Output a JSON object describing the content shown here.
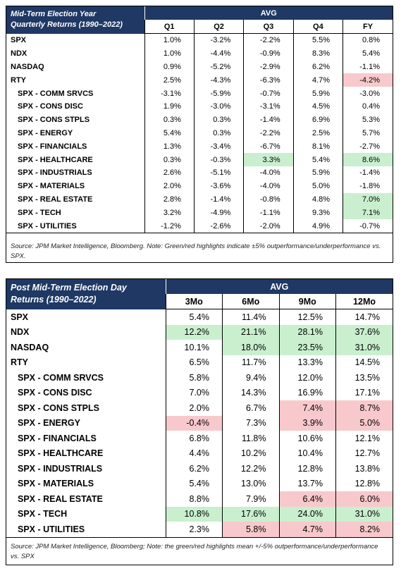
{
  "table1": {
    "title": [
      "Mid-Term Election Year",
      "Quarterly Returns (1990–2022)"
    ],
    "group": "AVG",
    "columns": [
      "Q1",
      "Q2",
      "Q3",
      "Q4",
      "FY"
    ],
    "rows": [
      [
        "SPX",
        "1.0%",
        "-3.2%",
        "-2.2%",
        "5.5%",
        "0.8%"
      ],
      [
        "NDX",
        "1.0%",
        "-4.4%",
        "-0.9%",
        "8.3%",
        "5.4%"
      ],
      [
        "NASDAQ",
        "0.9%",
        "-5.2%",
        "-2.9%",
        "6.2%",
        "-1.1%"
      ],
      [
        "RTY",
        "2.5%",
        "-4.3%",
        "-6.3%",
        "4.7%",
        "-4.2%"
      ],
      [
        "SPX - COMM SRVCS",
        "-3.1%",
        "-5.9%",
        "-0.7%",
        "5.9%",
        "-3.0%"
      ],
      [
        "SPX - CONS DISC",
        "1.9%",
        "-3.0%",
        "-3.1%",
        "4.5%",
        "0.4%"
      ],
      [
        "SPX - CONS STPLS",
        "0.3%",
        "0.3%",
        "-1.4%",
        "6.9%",
        "5.3%"
      ],
      [
        "SPX - ENERGY",
        "5.4%",
        "0.3%",
        "-2.2%",
        "2.5%",
        "5.7%"
      ],
      [
        "SPX - FINANCIALS",
        "1.3%",
        "-3.4%",
        "-6.7%",
        "8.1%",
        "-2.7%"
      ],
      [
        "SPX - HEALTHCARE",
        "0.3%",
        "-0.3%",
        "3.3%",
        "5.4%",
        "8.6%"
      ],
      [
        "SPX - INDUSTRIALS",
        "2.6%",
        "-5.1%",
        "-4.0%",
        "5.9%",
        "-1.4%"
      ],
      [
        "SPX - MATERIALS",
        "2.0%",
        "-3.6%",
        "-4.0%",
        "5.0%",
        "-1.8%"
      ],
      [
        "SPX - REAL ESTATE",
        "2.8%",
        "-1.4%",
        "-0.8%",
        "4.8%",
        "7.0%"
      ],
      [
        "SPX - TECH",
        "3.2%",
        "-4.9%",
        "-1.1%",
        "9.3%",
        "7.1%"
      ],
      [
        "SPX - UTILITIES",
        "-1.2%",
        "-2.6%",
        "-2.0%",
        "4.9%",
        "-0.7%"
      ]
    ],
    "highlights": [
      {
        "row": 3,
        "col": 5,
        "color": "#f8c9cc"
      },
      {
        "row": 9,
        "col": 3,
        "color": "#c9efcf"
      },
      {
        "row": 9,
        "col": 5,
        "color": "#c9efcf"
      },
      {
        "row": 12,
        "col": 5,
        "color": "#c9efcf"
      },
      {
        "row": 13,
        "col": 5,
        "color": "#c9efcf"
      }
    ],
    "source": "Source: JPM Market Intelligence, Bloomberg. Note: Green/red highlights indicate ±5% outperformance/underperformance vs. SPX."
  },
  "table2": {
    "title": [
      "Post Mid-Term Election Day",
      "Returns (1990–2022)"
    ],
    "group": "AVG",
    "columns": [
      "3Mo",
      "6Mo",
      "9Mo",
      "12Mo"
    ],
    "rows": [
      [
        "SPX",
        "5.4%",
        "11.4%",
        "12.5%",
        "14.7%"
      ],
      [
        "NDX",
        "12.2%",
        "21.1%",
        "28.1%",
        "37.6%"
      ],
      [
        "NASDAQ",
        "10.1%",
        "18.0%",
        "23.5%",
        "31.0%"
      ],
      [
        "RTY",
        "6.5%",
        "11.7%",
        "13.3%",
        "14.5%"
      ],
      [
        "SPX - COMM SRVCS",
        "5.8%",
        "9.4%",
        "12.0%",
        "13.5%"
      ],
      [
        "SPX - CONS DISC",
        "7.0%",
        "14.3%",
        "16.9%",
        "17.1%"
      ],
      [
        "SPX - CONS STPLS",
        "2.0%",
        "6.7%",
        "7.4%",
        "8.7%"
      ],
      [
        "SPX - ENERGY",
        "-0.4%",
        "7.3%",
        "3.9%",
        "5.0%"
      ],
      [
        "SPX - FINANCIALS",
        "6.8%",
        "11.8%",
        "10.6%",
        "12.1%"
      ],
      [
        "SPX - HEALTHCARE",
        "4.4%",
        "10.2%",
        "10.4%",
        "12.7%"
      ],
      [
        "SPX - INDUSTRIALS",
        "6.2%",
        "12.2%",
        "12.8%",
        "13.8%"
      ],
      [
        "SPX - MATERIALS",
        "5.4%",
        "13.0%",
        "13.7%",
        "12.8%"
      ],
      [
        "SPX - REAL ESTATE",
        "8.8%",
        "7.9%",
        "6.4%",
        "6.0%"
      ],
      [
        "SPX - TECH",
        "10.8%",
        "17.6%",
        "24.0%",
        "31.0%"
      ],
      [
        "SPX - UTILITIES",
        "2.3%",
        "5.8%",
        "4.7%",
        "8.2%"
      ]
    ],
    "highlights": [
      {
        "row": 1,
        "col": 1,
        "color": "#c9efcf"
      },
      {
        "row": 1,
        "col": 2,
        "color": "#c9efcf"
      },
      {
        "row": 1,
        "col": 3,
        "color": "#c9efcf"
      },
      {
        "row": 1,
        "col": 4,
        "color": "#c9efcf"
      },
      {
        "row": 2,
        "col": 2,
        "color": "#c9efcf"
      },
      {
        "row": 2,
        "col": 3,
        "color": "#c9efcf"
      },
      {
        "row": 2,
        "col": 4,
        "color": "#c9efcf"
      },
      {
        "row": 6,
        "col": 3,
        "color": "#f8c9cc"
      },
      {
        "row": 6,
        "col": 4,
        "color": "#f8c9cc"
      },
      {
        "row": 7,
        "col": 1,
        "color": "#f8c9cc"
      },
      {
        "row": 7,
        "col": 3,
        "color": "#f8c9cc"
      },
      {
        "row": 7,
        "col": 4,
        "color": "#f8c9cc"
      },
      {
        "row": 12,
        "col": 3,
        "color": "#f8c9cc"
      },
      {
        "row": 12,
        "col": 4,
        "color": "#f8c9cc"
      },
      {
        "row": 13,
        "col": 1,
        "color": "#c9efcf"
      },
      {
        "row": 13,
        "col": 2,
        "color": "#c9efcf"
      },
      {
        "row": 13,
        "col": 3,
        "color": "#c9efcf"
      },
      {
        "row": 13,
        "col": 4,
        "color": "#c9efcf"
      },
      {
        "row": 14,
        "col": 2,
        "color": "#f8c9cc"
      },
      {
        "row": 14,
        "col": 3,
        "color": "#f8c9cc"
      },
      {
        "row": 14,
        "col": 4,
        "color": "#f8c9cc"
      }
    ],
    "source": "Source: JPM Market Intelligence, Bloomberg; Note: the green/red highlights mean +/-5% outperformance/underperformance vs. SPX"
  }
}
